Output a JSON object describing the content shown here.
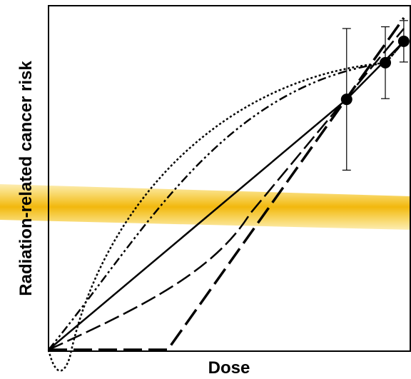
{
  "chart_data": {
    "type": "scatter",
    "xlabel": "Dose",
    "ylabel": "Radiation-related cancer risk",
    "x": [
      0.824,
      0.931,
      0.982
    ],
    "values": [
      0.729,
      0.835,
      0.897
    ],
    "errors": [
      0.205,
      0.104,
      0.06
    ],
    "color": "#000000",
    "xlim": [
      0,
      1
    ],
    "ylim": [
      0,
      1
    ]
  }
}
